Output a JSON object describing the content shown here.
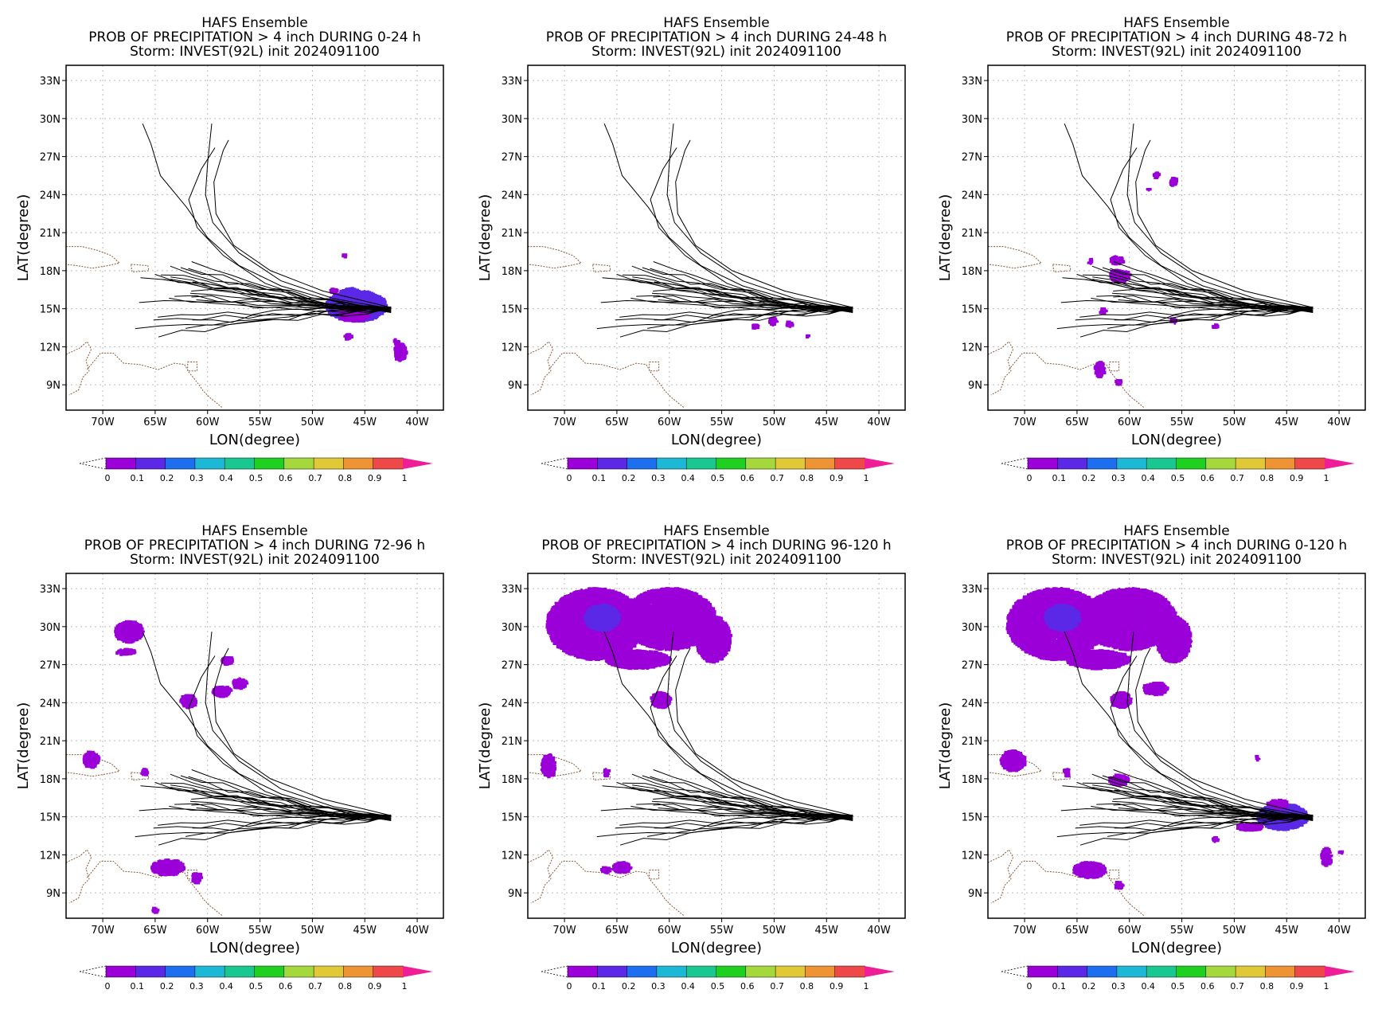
{
  "figure": {
    "ensemble": "HAFS Ensemble",
    "storm_line": "Storm: INVEST(92L) init 2024091100"
  },
  "colorbar": {
    "labels": [
      "0",
      "0.1",
      "0.2",
      "0.3",
      "0.4",
      "0.5",
      "0.6",
      "0.7",
      "0.8",
      "0.9",
      "1"
    ],
    "colors": [
      "#9b00d8",
      "#5a28e6",
      "#1e6ff0",
      "#1cb8d6",
      "#18c890",
      "#20d020",
      "#a4d83c",
      "#e0c836",
      "#ee9434",
      "#ee4848"
    ],
    "under_color": "#ffffff",
    "over_color": "#f01e96"
  },
  "chart_data": [
    {
      "type": "map",
      "title": [
        "HAFS Ensemble",
        "PROB OF PRECIPITATION > 4 inch DURING  0-24 h",
        "Storm: INVEST(92L) init 2024091100"
      ],
      "xlabel": "LON(degree)",
      "ylabel": "LAT(degree)",
      "xlim": [
        -73.5,
        -37.5
      ],
      "ylim": [
        7.0,
        34.2
      ],
      "x_ticks": [
        -70,
        -65,
        -60,
        -55,
        -50,
        -45,
        -40
      ],
      "x_tick_labels": [
        "70W",
        "65W",
        "60W",
        "55W",
        "50W",
        "45W",
        "40W"
      ],
      "y_ticks": [
        9,
        12,
        15,
        18,
        21,
        24,
        27,
        30,
        33
      ],
      "y_tick_labels": [
        "9N",
        "12N",
        "15N",
        "18N",
        "21N",
        "24N",
        "27N",
        "30N",
        "33N"
      ],
      "grid": true,
      "colorbar_range": [
        0,
        1
      ],
      "prob_areas": [
        {
          "lon": -45.8,
          "lat": 15.2,
          "rlon": 2.8,
          "rlat": 1.2,
          "p": 0.1
        },
        {
          "lon": -46.4,
          "lat": 16.2,
          "rlon": 0.9,
          "rlat": 0.4,
          "p": 0.1
        },
        {
          "lon": -46.0,
          "lat": 14.5,
          "rlon": 1.4,
          "rlat": 0.5,
          "p": 0.06
        },
        {
          "lon": -48.0,
          "lat": 16.4,
          "rlon": 0.3,
          "rlat": 0.2,
          "p": 0.05
        },
        {
          "lon": -46.6,
          "lat": 12.8,
          "rlon": 0.3,
          "rlat": 0.2,
          "p": 0.05
        },
        {
          "lon": -41.6,
          "lat": 11.6,
          "rlon": 0.5,
          "rlat": 0.7,
          "p": 0.05
        },
        {
          "lon": -42.0,
          "lat": 12.4,
          "rlon": 0.2,
          "rlat": 0.2,
          "p": 0.05
        },
        {
          "lon": -46.9,
          "lat": 19.2,
          "rlon": 0.1,
          "rlat": 0.1,
          "p": 0.03
        }
      ]
    },
    {
      "type": "map",
      "title": [
        "HAFS Ensemble",
        "PROB OF PRECIPITATION > 4 inch DURING 24-48 h",
        "Storm: INVEST(92L) init 2024091100"
      ],
      "xlabel": "LON(degree)",
      "ylabel": "LAT(degree)",
      "xlim": [
        -73.5,
        -37.5
      ],
      "ylim": [
        7.0,
        34.2
      ],
      "x_ticks": [
        -70,
        -65,
        -60,
        -55,
        -50,
        -45,
        -40
      ],
      "x_tick_labels": [
        "70W",
        "65W",
        "60W",
        "55W",
        "50W",
        "45W",
        "40W"
      ],
      "y_ticks": [
        9,
        12,
        15,
        18,
        21,
        24,
        27,
        30,
        33
      ],
      "y_tick_labels": [
        "9N",
        "12N",
        "15N",
        "18N",
        "21N",
        "24N",
        "27N",
        "30N",
        "33N"
      ],
      "grid": true,
      "colorbar_range": [
        0,
        1
      ],
      "prob_areas": [
        {
          "lon": -50.1,
          "lat": 14.0,
          "rlon": 0.3,
          "rlat": 0.3,
          "p": 0.05
        },
        {
          "lon": -51.8,
          "lat": 13.6,
          "rlon": 0.2,
          "rlat": 0.2,
          "p": 0.05
        },
        {
          "lon": -48.5,
          "lat": 13.8,
          "rlon": 0.2,
          "rlat": 0.2,
          "p": 0.04
        },
        {
          "lon": -46.8,
          "lat": 12.8,
          "rlon": 0.1,
          "rlat": 0.1,
          "p": 0.04
        }
      ]
    },
    {
      "type": "map",
      "title": [
        "HAFS Ensemble",
        "PROB OF PRECIPITATION > 4 inch DURING 48-72 h",
        "Storm: INVEST(92L) init 2024091100"
      ],
      "xlabel": "LON(degree)",
      "ylabel": "LAT(degree)",
      "xlim": [
        -73.5,
        -37.5
      ],
      "ylim": [
        7.0,
        34.2
      ],
      "x_ticks": [
        -70,
        -65,
        -60,
        -55,
        -50,
        -45,
        -40
      ],
      "x_tick_labels": [
        "70W",
        "65W",
        "60W",
        "55W",
        "50W",
        "45W",
        "40W"
      ],
      "y_ticks": [
        9,
        12,
        15,
        18,
        21,
        24,
        27,
        30,
        33
      ],
      "y_tick_labels": [
        "9N",
        "12N",
        "15N",
        "18N",
        "21N",
        "24N",
        "27N",
        "30N",
        "33N"
      ],
      "grid": true,
      "colorbar_range": [
        0,
        1
      ],
      "prob_areas": [
        {
          "lon": -60.9,
          "lat": 17.6,
          "rlon": 0.9,
          "rlat": 0.5,
          "p": 0.08
        },
        {
          "lon": -61.2,
          "lat": 18.8,
          "rlon": 0.6,
          "rlat": 0.3,
          "p": 0.06
        },
        {
          "lon": -62.8,
          "lat": 10.2,
          "rlon": 0.4,
          "rlat": 0.6,
          "p": 0.07
        },
        {
          "lon": -61.0,
          "lat": 9.2,
          "rlon": 0.2,
          "rlat": 0.2,
          "p": 0.05
        },
        {
          "lon": -55.8,
          "lat": 25.0,
          "rlon": 0.3,
          "rlat": 0.3,
          "p": 0.05
        },
        {
          "lon": -57.4,
          "lat": 25.5,
          "rlon": 0.2,
          "rlat": 0.2,
          "p": 0.04
        },
        {
          "lon": -58.2,
          "lat": 24.4,
          "rlon": 0.1,
          "rlat": 0.1,
          "p": 0.03
        },
        {
          "lon": -62.5,
          "lat": 14.8,
          "rlon": 0.2,
          "rlat": 0.2,
          "p": 0.04
        },
        {
          "lon": -55.8,
          "lat": 14.0,
          "rlon": 0.2,
          "rlat": 0.2,
          "p": 0.04
        },
        {
          "lon": -51.8,
          "lat": 13.6,
          "rlon": 0.2,
          "rlat": 0.2,
          "p": 0.04
        },
        {
          "lon": -63.7,
          "lat": 18.7,
          "rlon": 0.1,
          "rlat": 0.2,
          "p": 0.04
        }
      ]
    },
    {
      "type": "map",
      "title": [
        "HAFS Ensemble",
        "PROB OF PRECIPITATION > 4 inch DURING 72-96 h",
        "Storm: INVEST(92L) init 2024091100"
      ],
      "xlabel": "LON(degree)",
      "ylabel": "LAT(degree)",
      "xlim": [
        -73.5,
        -37.5
      ],
      "ylim": [
        7.0,
        34.2
      ],
      "x_ticks": [
        -70,
        -65,
        -60,
        -55,
        -50,
        -45,
        -40
      ],
      "x_tick_labels": [
        "70W",
        "65W",
        "60W",
        "55W",
        "50W",
        "45W",
        "40W"
      ],
      "y_ticks": [
        9,
        12,
        15,
        18,
        21,
        24,
        27,
        30,
        33
      ],
      "y_tick_labels": [
        "9N",
        "12N",
        "15N",
        "18N",
        "21N",
        "24N",
        "27N",
        "30N",
        "33N"
      ],
      "grid": true,
      "colorbar_range": [
        0,
        1
      ],
      "prob_areas": [
        {
          "lon": -67.5,
          "lat": 29.6,
          "rlon": 1.3,
          "rlat": 0.8,
          "p": 0.07
        },
        {
          "lon": -67.8,
          "lat": 28.0,
          "rlon": 0.9,
          "rlat": 0.2,
          "p": 0.05
        },
        {
          "lon": -61.8,
          "lat": 24.1,
          "rlon": 0.7,
          "rlat": 0.5,
          "p": 0.07
        },
        {
          "lon": -58.6,
          "lat": 24.9,
          "rlon": 0.8,
          "rlat": 0.4,
          "p": 0.05
        },
        {
          "lon": -56.9,
          "lat": 25.5,
          "rlon": 0.6,
          "rlat": 0.4,
          "p": 0.05
        },
        {
          "lon": -58.1,
          "lat": 27.3,
          "rlon": 0.5,
          "rlat": 0.3,
          "p": 0.05
        },
        {
          "lon": -71.1,
          "lat": 19.5,
          "rlon": 0.7,
          "rlat": 0.6,
          "p": 0.08
        },
        {
          "lon": -66.0,
          "lat": 18.5,
          "rlon": 0.2,
          "rlat": 0.3,
          "p": 0.05
        },
        {
          "lon": -63.8,
          "lat": 11.0,
          "rlon": 1.5,
          "rlat": 0.6,
          "p": 0.07
        },
        {
          "lon": -61.0,
          "lat": 10.2,
          "rlon": 0.4,
          "rlat": 0.4,
          "p": 0.05
        },
        {
          "lon": -65.0,
          "lat": 7.6,
          "rlon": 0.2,
          "rlat": 0.2,
          "p": 0.05
        }
      ]
    },
    {
      "type": "map",
      "title": [
        "HAFS Ensemble",
        "PROB OF PRECIPITATION > 4 inch DURING 96-120 h",
        "Storm: INVEST(92L) init 2024091100"
      ],
      "xlabel": "LON(degree)",
      "ylabel": "LAT(degree)",
      "xlim": [
        -73.5,
        -37.5
      ],
      "ylim": [
        7.0,
        34.2
      ],
      "x_ticks": [
        -70,
        -65,
        -60,
        -55,
        -50,
        -45,
        -40
      ],
      "x_tick_labels": [
        "70W",
        "65W",
        "60W",
        "55W",
        "50W",
        "45W",
        "40W"
      ],
      "y_ticks": [
        9,
        12,
        15,
        18,
        21,
        24,
        27,
        30,
        33
      ],
      "y_tick_labels": [
        "9N",
        "12N",
        "15N",
        "18N",
        "21N",
        "24N",
        "27N",
        "30N",
        "33N"
      ],
      "grid": true,
      "colorbar_range": [
        0,
        1
      ],
      "prob_areas": [
        {
          "lon": -67.0,
          "lat": 30.2,
          "rlon": 4.6,
          "rlat": 2.8,
          "p": 0.08
        },
        {
          "lon": -66.4,
          "lat": 30.7,
          "rlon": 1.6,
          "rlat": 1.0,
          "p": 0.13
        },
        {
          "lon": -60.0,
          "lat": 30.6,
          "rlon": 4.4,
          "rlat": 2.4,
          "p": 0.07
        },
        {
          "lon": -55.8,
          "lat": 29.0,
          "rlon": 1.6,
          "rlat": 1.8,
          "p": 0.06
        },
        {
          "lon": -63.0,
          "lat": 27.4,
          "rlon": 3.0,
          "rlat": 0.7,
          "p": 0.06
        },
        {
          "lon": -60.8,
          "lat": 24.2,
          "rlon": 0.9,
          "rlat": 0.6,
          "p": 0.07
        },
        {
          "lon": -71.5,
          "lat": 19.0,
          "rlon": 0.6,
          "rlat": 0.9,
          "p": 0.07
        },
        {
          "lon": -66.0,
          "lat": 18.5,
          "rlon": 0.2,
          "rlat": 0.3,
          "p": 0.05
        },
        {
          "lon": -64.5,
          "lat": 11.0,
          "rlon": 0.8,
          "rlat": 0.4,
          "p": 0.05
        },
        {
          "lon": -66.0,
          "lat": 10.8,
          "rlon": 0.4,
          "rlat": 0.2,
          "p": 0.04
        }
      ]
    },
    {
      "type": "map",
      "title": [
        "HAFS Ensemble",
        "PROB OF PRECIPITATION > 4 inch DURING 0-120 h",
        "Storm: INVEST(92L) init 2024091100"
      ],
      "xlabel": "LON(degree)",
      "ylabel": "LAT(degree)",
      "xlim": [
        -73.5,
        -37.5
      ],
      "ylim": [
        7.0,
        34.2
      ],
      "x_ticks": [
        -70,
        -65,
        -60,
        -55,
        -50,
        -45,
        -40
      ],
      "x_tick_labels": [
        "70W",
        "65W",
        "60W",
        "55W",
        "50W",
        "45W",
        "40W"
      ],
      "y_ticks": [
        9,
        12,
        15,
        18,
        21,
        24,
        27,
        30,
        33
      ],
      "y_tick_labels": [
        "9N",
        "12N",
        "15N",
        "18N",
        "21N",
        "24N",
        "27N",
        "30N",
        "33N"
      ],
      "grid": true,
      "colorbar_range": [
        0,
        1
      ],
      "prob_areas": [
        {
          "lon": -67.0,
          "lat": 30.2,
          "rlon": 4.6,
          "rlat": 2.8,
          "p": 0.08
        },
        {
          "lon": -66.4,
          "lat": 30.7,
          "rlon": 1.6,
          "rlat": 1.0,
          "p": 0.13
        },
        {
          "lon": -60.0,
          "lat": 30.6,
          "rlon": 4.4,
          "rlat": 2.4,
          "p": 0.07
        },
        {
          "lon": -55.8,
          "lat": 29.0,
          "rlon": 1.6,
          "rlat": 1.8,
          "p": 0.06
        },
        {
          "lon": -63.0,
          "lat": 27.4,
          "rlon": 3.0,
          "rlat": 0.7,
          "p": 0.06
        },
        {
          "lon": -60.8,
          "lat": 24.2,
          "rlon": 0.9,
          "rlat": 0.6,
          "p": 0.07
        },
        {
          "lon": -57.5,
          "lat": 25.1,
          "rlon": 1.1,
          "rlat": 0.5,
          "p": 0.05
        },
        {
          "lon": -71.1,
          "lat": 19.4,
          "rlon": 1.1,
          "rlat": 0.8,
          "p": 0.07
        },
        {
          "lon": -66.0,
          "lat": 18.5,
          "rlon": 0.2,
          "rlat": 0.3,
          "p": 0.05
        },
        {
          "lon": -61.0,
          "lat": 17.9,
          "rlon": 0.9,
          "rlat": 0.4,
          "p": 0.06
        },
        {
          "lon": -63.8,
          "lat": 10.8,
          "rlon": 1.5,
          "rlat": 0.6,
          "p": 0.07
        },
        {
          "lon": -61.0,
          "lat": 9.6,
          "rlon": 0.3,
          "rlat": 0.3,
          "p": 0.05
        },
        {
          "lon": -45.4,
          "lat": 15.0,
          "rlon": 2.4,
          "rlat": 1.0,
          "p": 0.1
        },
        {
          "lon": -45.8,
          "lat": 16.0,
          "rlon": 0.9,
          "rlat": 0.3,
          "p": 0.07
        },
        {
          "lon": -48.5,
          "lat": 14.2,
          "rlon": 1.2,
          "rlat": 0.3,
          "p": 0.05
        },
        {
          "lon": -41.2,
          "lat": 11.8,
          "rlon": 0.4,
          "rlat": 0.7,
          "p": 0.05
        },
        {
          "lon": -47.8,
          "lat": 19.6,
          "rlon": 0.1,
          "rlat": 0.2,
          "p": 0.04
        },
        {
          "lon": -39.8,
          "lat": 12.2,
          "rlon": 0.1,
          "rlat": 0.1,
          "p": 0.03
        },
        {
          "lon": -51.8,
          "lat": 13.2,
          "rlon": 0.2,
          "rlat": 0.2,
          "p": 0.04
        }
      ]
    }
  ]
}
